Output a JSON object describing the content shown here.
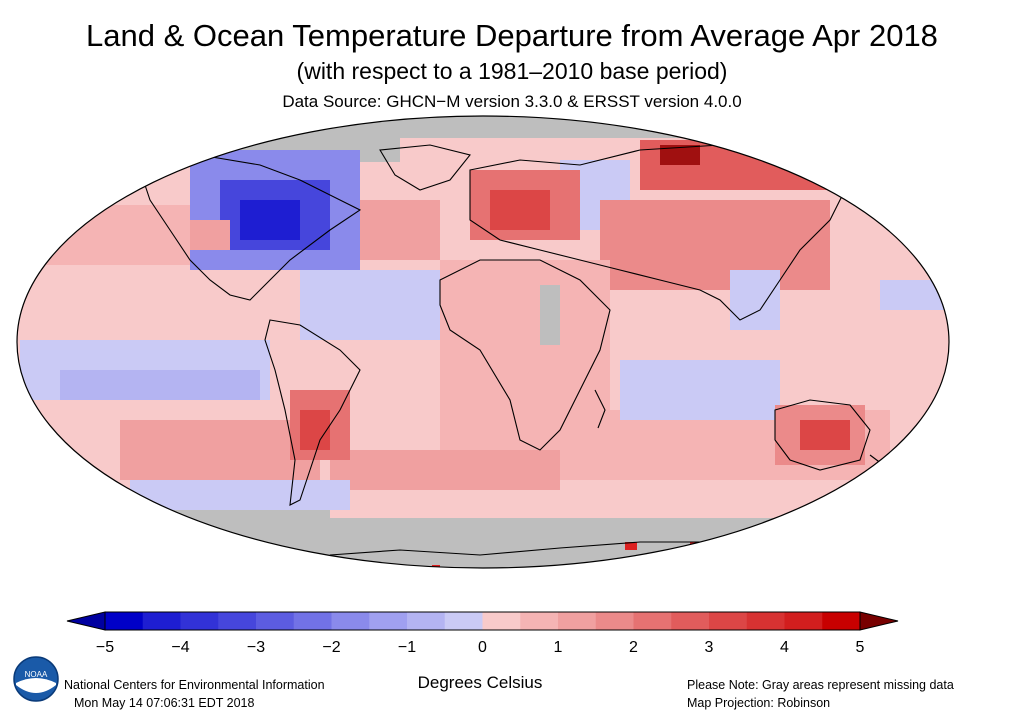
{
  "header": {
    "title": "Land & Ocean Temperature Departure from Average Apr 2018",
    "subtitle": "(with respect to a 1981–2010 base period)",
    "source": "Data Source: GHCN−M version 3.3.0 & ERSST version 4.0.0"
  },
  "colorbar": {
    "ticks": [
      "−5",
      "−4",
      "−3",
      "−2",
      "−1",
      "0",
      "1",
      "2",
      "3",
      "4",
      "5"
    ],
    "min": -5,
    "max": 5,
    "step": 0.5,
    "colors": [
      "#0000c8",
      "#1e1ed2",
      "#3232d7",
      "#4646dc",
      "#5c5ce1",
      "#7272e6",
      "#8a8aeb",
      "#a0a0f0",
      "#b4b4f2",
      "#cacaf5",
      "#f8caca",
      "#f5b4b4",
      "#f0a0a0",
      "#eb8a8a",
      "#e67272",
      "#e15c5c",
      "#dc4646",
      "#d73232",
      "#d21e1e",
      "#c80000"
    ],
    "under_color": "#0000a0",
    "over_color": "#780000",
    "unit": "Degrees Celsius"
  },
  "map": {
    "projection": "Robinson",
    "missing_color": "#bebebe",
    "land_outline_color": "#000000"
  },
  "footer": {
    "org": "National Centers for Environmental Information",
    "timestamp": "Mon May 14 07:06:31 EDT 2018",
    "note": "Please Note: Gray areas represent missing data",
    "projection_note": "Map Projection: Robinson"
  },
  "logo": {
    "icon": "noaa-logo-icon",
    "text": "NOAA"
  }
}
